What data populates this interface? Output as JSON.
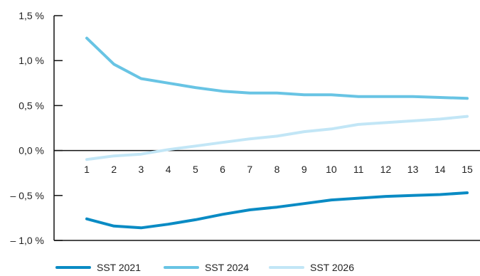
{
  "chart_data": {
    "type": "line",
    "x": [
      1,
      2,
      3,
      4,
      5,
      6,
      7,
      8,
      9,
      10,
      11,
      12,
      13,
      14,
      15
    ],
    "x_tick_labels": [
      "1",
      "2",
      "3",
      "4",
      "5",
      "6",
      "7",
      "8",
      "9",
      "10",
      "11",
      "12",
      "13",
      "14",
      "15"
    ],
    "y_tick_labels": [
      "1,5 %",
      "1,0 %",
      "0,5 %",
      "0,0 %",
      "– 0,5 %",
      "– 1,0 %"
    ],
    "y_ticks": [
      1.5,
      1.0,
      0.5,
      0.0,
      -0.5,
      -1.0
    ],
    "ylim": [
      -1.0,
      1.5
    ],
    "grid": false,
    "legend_position": "bottom",
    "series": [
      {
        "name": "SST 2021",
        "color": "#0a8bc4",
        "values": [
          -0.76,
          -0.84,
          -0.86,
          -0.82,
          -0.77,
          -0.71,
          -0.66,
          -0.63,
          -0.59,
          -0.55,
          -0.53,
          -0.51,
          -0.5,
          -0.49,
          -0.47
        ]
      },
      {
        "name": "SST 2024",
        "color": "#68c4e4",
        "values": [
          1.25,
          0.96,
          0.8,
          0.75,
          0.7,
          0.66,
          0.64,
          0.64,
          0.62,
          0.62,
          0.6,
          0.6,
          0.6,
          0.59,
          0.58
        ]
      },
      {
        "name": "SST 2026",
        "color": "#c2e6f6",
        "values": [
          -0.1,
          -0.06,
          -0.04,
          0.01,
          0.05,
          0.09,
          0.13,
          0.16,
          0.21,
          0.24,
          0.29,
          0.31,
          0.33,
          0.35,
          0.38
        ]
      }
    ]
  }
}
